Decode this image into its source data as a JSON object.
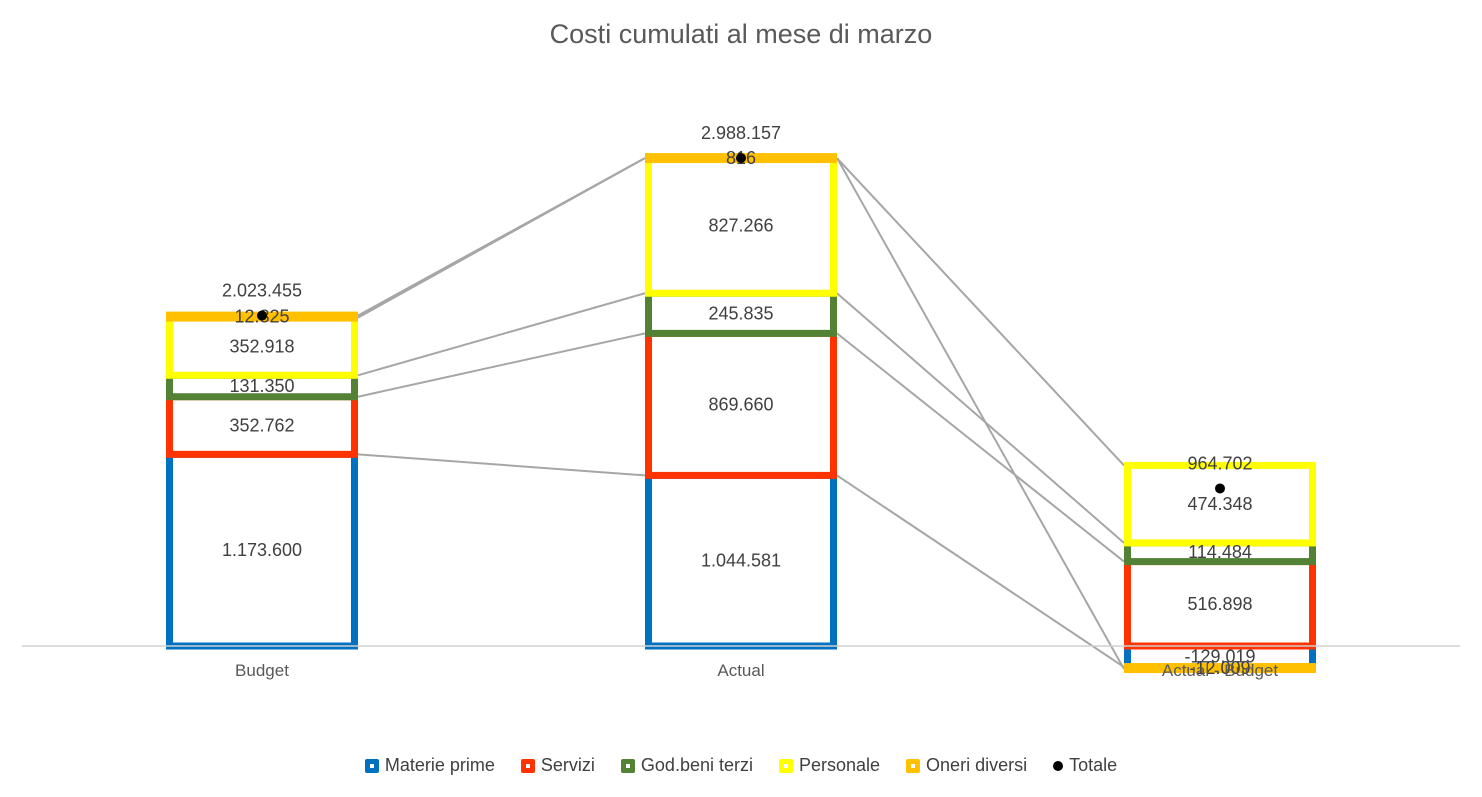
{
  "chart_data": {
    "type": "bar",
    "stacked": true,
    "title": "Costi cumulati al mese di marzo",
    "categories": [
      "Budget",
      "Actual",
      "Actual - Budget"
    ],
    "series": [
      {
        "name": "Materie prime",
        "color": "#0070C0",
        "values": [
          1173600,
          1044581,
          -129019
        ]
      },
      {
        "name": "Servizi",
        "color": "#FF3300",
        "values": [
          352762,
          869660,
          516898
        ]
      },
      {
        "name": "God.beni terzi",
        "color": "#548235",
        "values": [
          131350,
          245835,
          114484
        ]
      },
      {
        "name": "Personale",
        "color": "#FFFF00",
        "values": [
          352918,
          827266,
          474348
        ]
      },
      {
        "name": "Oneri diversi",
        "color": "#FFC000",
        "values": [
          12825,
          816,
          -12009
        ]
      }
    ],
    "totals": {
      "name": "Totale",
      "color": "#000000",
      "values": [
        2023455,
        2988157,
        964702
      ]
    },
    "value_labels": {
      "series": [
        [
          "1.173.600",
          "1.044.581",
          "-129.019"
        ],
        [
          "352.762",
          "869.660",
          "516.898"
        ],
        [
          "131.350",
          "245.835",
          "114.484"
        ],
        [
          "352.918",
          "827.266",
          "474.348"
        ],
        [
          "12.825",
          "816",
          "-12.009"
        ]
      ],
      "totals": [
        "2.023.455",
        "2.988.157",
        "964.702"
      ]
    },
    "legend_position": "bottom",
    "series_lines": true,
    "grid": false
  },
  "legend": {
    "items": [
      {
        "label": "Materie prime",
        "color": "#0070C0",
        "marker": "square"
      },
      {
        "label": "Servizi",
        "color": "#FF3300",
        "marker": "square"
      },
      {
        "label": "God.beni terzi",
        "color": "#548235",
        "marker": "square"
      },
      {
        "label": "Personale",
        "color": "#FFFF00",
        "marker": "square"
      },
      {
        "label": "Oneri diversi",
        "color": "#FFC000",
        "marker": "square"
      },
      {
        "label": "Totale",
        "color": "#000000",
        "marker": "dot"
      }
    ]
  }
}
